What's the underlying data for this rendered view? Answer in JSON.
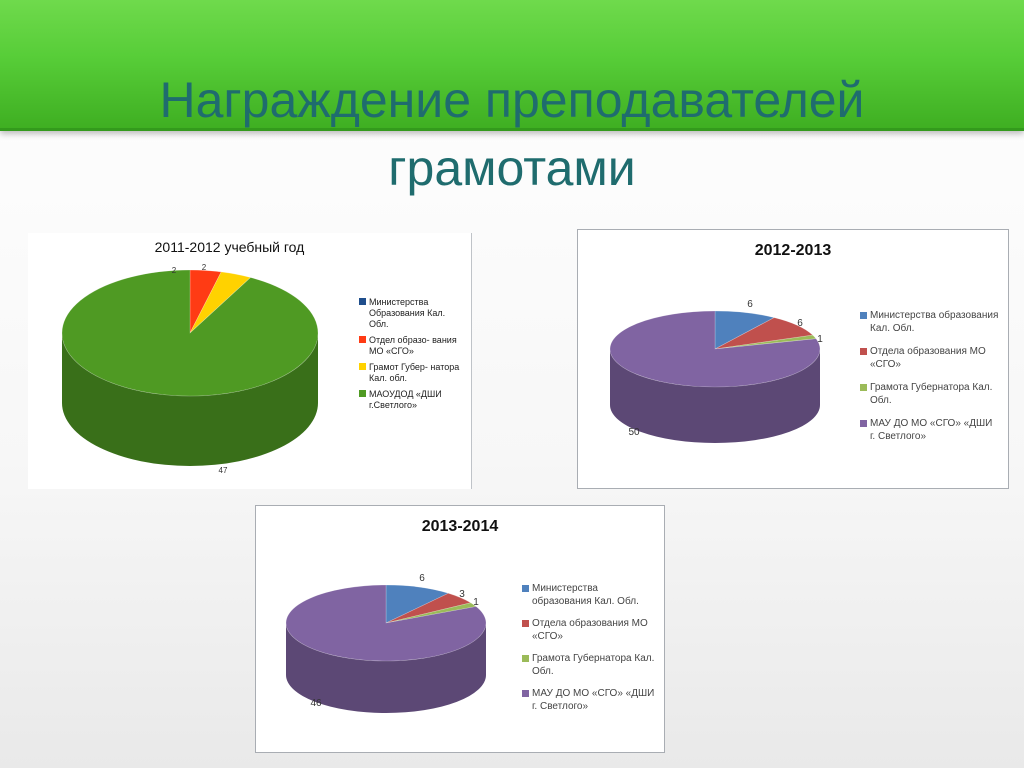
{
  "slide": {
    "title_line1": "Награждение преподавателей",
    "title_line2": "грамотами"
  },
  "colors": {
    "header_green": "#57cd38",
    "title_teal": "#1f6c6e"
  },
  "chart_data": [
    {
      "type": "pie",
      "title": "2011-2012 учебный год",
      "categories": [
        "Министерства Образования Кал. Обл.",
        "Отдел образо- вания МО «СГО»",
        "Грамот Губер- натора Кал. обл.",
        "МАОУДОД «ДШИ г.Светлого»"
      ],
      "values": [
        0,
        2,
        2,
        47
      ],
      "colors": [
        "#1f4e8c",
        "#ff3b14",
        "#ffd200",
        "#4f9a23"
      ],
      "data_labels": [
        "",
        "2",
        "2",
        "47"
      ],
      "legend_position": "right"
    },
    {
      "type": "pie",
      "title": "2012-2013",
      "categories": [
        "Министерства образования Кал. Обл.",
        "Отдела образования МО «СГО»",
        "Грамота Губернатора Кал. Обл.",
        "МАУ ДО МО «СГО» «ДШИ г. Светлого»"
      ],
      "values": [
        6,
        6,
        1,
        50
      ],
      "colors": [
        "#4f81bd",
        "#c0504d",
        "#9bbb59",
        "#8064a2"
      ],
      "data_labels": [
        "6",
        "6",
        "1",
        "50"
      ],
      "legend_position": "right"
    },
    {
      "type": "pie",
      "title": "2013-2014",
      "categories": [
        "Министерства образования Кал. Обл.",
        "Отдела образования МО «СГО»",
        "Грамота Губернатора Кал. Обл.",
        "МАУ ДО МО «СГО» «ДШИ г. Светлого»"
      ],
      "values": [
        6,
        3,
        1,
        46
      ],
      "colors": [
        "#4f81bd",
        "#c0504d",
        "#9bbb59",
        "#8064a2"
      ],
      "data_labels": [
        "6",
        "3",
        "1",
        "46"
      ],
      "legend_position": "right"
    }
  ]
}
